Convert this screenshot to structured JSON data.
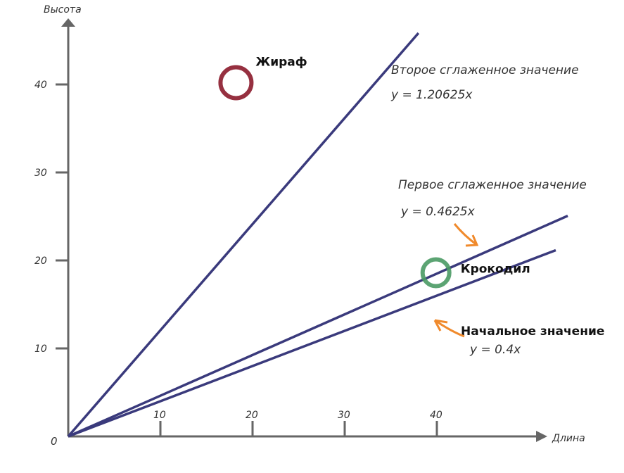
{
  "chart_data": {
    "type": "line",
    "xlabel": "Длина",
    "ylabel": "Высота",
    "origin_label": "0",
    "x_ticks": [
      10,
      20,
      30,
      40
    ],
    "y_ticks": [
      10,
      20,
      30,
      40
    ],
    "xlim": [
      0,
      50
    ],
    "ylim": [
      0,
      47
    ],
    "grid": false,
    "line_color": "#3a3a7c",
    "axis_color": "#666666",
    "arrow_color": "#f08a2c",
    "series": [
      {
        "name": "Начальное значение",
        "equation": "y = 0.4x",
        "slope": 0.4,
        "x_end": 52.9
      },
      {
        "name": "Первое сглаженное значение",
        "equation": "y = 0.4625x",
        "slope": 0.4625,
        "x_end": 54.2
      },
      {
        "name": "Второе сглаженное значение",
        "equation": "y = 1.20625x",
        "slope": 1.20625,
        "x_end": 38
      }
    ],
    "points": [
      {
        "label": "Жираф",
        "x": 18.2,
        "y": 40.2,
        "color": "#8b1a2b"
      },
      {
        "label": "Крокодил",
        "x": 39.9,
        "y": 18.6,
        "color": "#4a9a64"
      }
    ]
  }
}
